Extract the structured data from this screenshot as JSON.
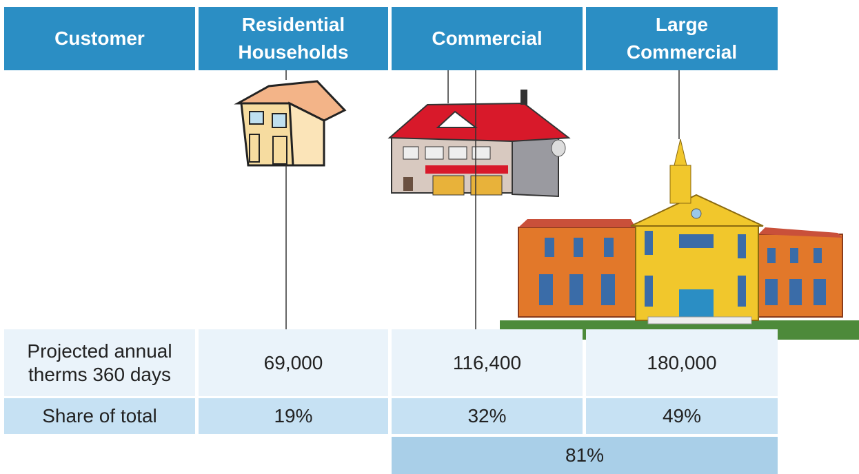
{
  "header": [
    [
      "Customer"
    ],
    [
      "Residential",
      "Households"
    ],
    [
      "Commercial"
    ],
    [
      "Large",
      "Commercial"
    ]
  ],
  "rows": [
    {
      "label": [
        "Projected annual",
        "therms 360 days"
      ],
      "cells": [
        "69,000",
        "116,400",
        "180,000"
      ]
    },
    {
      "label": [
        "Share of total"
      ],
      "cells": [
        "19%",
        "32%",
        "49%"
      ]
    }
  ],
  "combined": "81%"
}
